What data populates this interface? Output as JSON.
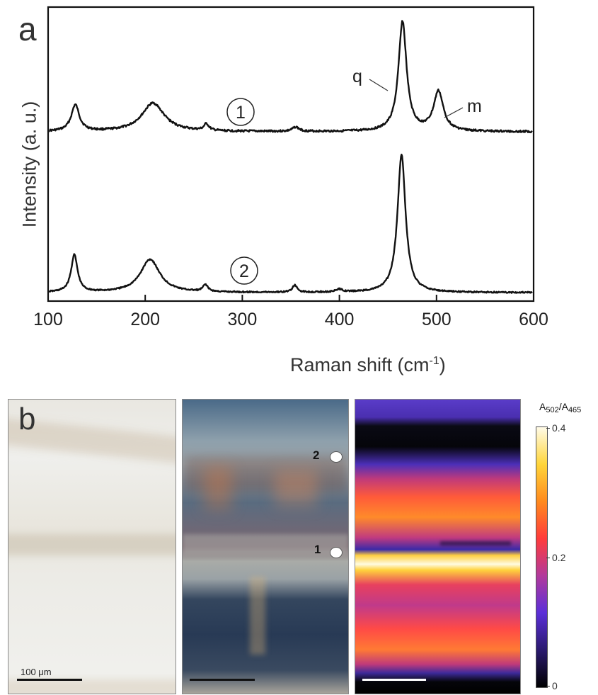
{
  "panels": {
    "a_label": "a",
    "b_label": "b"
  },
  "chart_data": {
    "type": "line",
    "title": "",
    "xlabel_main": "Raman shift (cm",
    "xlabel_sup": "-1",
    "xlabel_end": ")",
    "ylabel": "Intensity (a. u.)",
    "xlim": [
      100,
      600
    ],
    "xticks": [
      "100",
      "200",
      "300",
      "400",
      "500",
      "600"
    ],
    "grid": false,
    "series": [
      {
        "name": "1",
        "marker": "①",
        "peaks": [
          {
            "x": 128,
            "height": 0.24
          },
          {
            "x": 208,
            "height": 0.26
          },
          {
            "x": 263,
            "height": 0.06
          },
          {
            "x": 355,
            "height": 0.04
          },
          {
            "x": 465,
            "height": 1.0
          },
          {
            "x": 502,
            "height": 0.36
          }
        ]
      },
      {
        "name": "2",
        "marker": "②",
        "peaks": [
          {
            "x": 127,
            "height": 0.27
          },
          {
            "x": 205,
            "height": 0.24
          },
          {
            "x": 262,
            "height": 0.05
          },
          {
            "x": 354,
            "height": 0.05
          },
          {
            "x": 400,
            "height": 0.02
          },
          {
            "x": 464,
            "height": 1.0
          }
        ]
      }
    ],
    "annotations": [
      {
        "text": "q",
        "x": 465,
        "series": "1"
      },
      {
        "text": "m",
        "x": 502,
        "series": "1"
      }
    ]
  },
  "images": {
    "scalebar_label": "100 μm",
    "points": [
      {
        "label": "2"
      },
      {
        "label": "1"
      }
    ]
  },
  "colorbar": {
    "title_a": "A",
    "title_sub1": "502",
    "title_slash": "/A",
    "title_sub2": "465",
    "ticks": [
      "0.4",
      "0.2",
      "0"
    ],
    "range": [
      0,
      0.4
    ],
    "colors": [
      "#000000",
      "#2a1a6e",
      "#5b2fd8",
      "#b23a9c",
      "#ff3b3b",
      "#ff8a1e",
      "#ffd53a",
      "#fffbe8"
    ]
  }
}
